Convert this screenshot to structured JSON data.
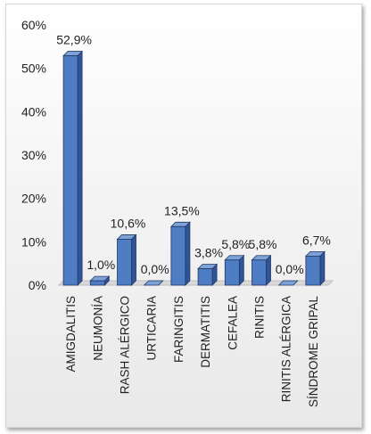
{
  "chart_data": {
    "type": "bar",
    "style": "3d-column",
    "title": "",
    "xlabel": "",
    "ylabel": "",
    "categories": [
      "AMIGDALITIS",
      "NEUMONÍA",
      "RASH ALÉRGICO",
      "URTICARIA",
      "FARINGITIS",
      "DERMATITIS",
      "CEFALEA",
      "RINITIS",
      "RINITIS ALÉRGICA",
      "SÍNDROME GRIPAL"
    ],
    "values": [
      52.9,
      1.0,
      10.6,
      0.0,
      13.5,
      3.8,
      5.8,
      5.8,
      0.0,
      6.7
    ],
    "data_labels": [
      "52,9%",
      "1,0%",
      "10,6%",
      "0,0%",
      "13,5%",
      "3,8%",
      "5,8%",
      "5,8%",
      "0,0%",
      "6,7%"
    ],
    "ylim": [
      0,
      60
    ],
    "yticks": [
      0,
      10,
      20,
      30,
      40,
      50,
      60
    ],
    "ytick_labels": [
      "0%",
      "10%",
      "20%",
      "30%",
      "40%",
      "50%",
      "60%"
    ],
    "grid": false,
    "legend": "none",
    "colors": {
      "bar_front": "#4f7dc4",
      "bar_top": "#7ea2d8",
      "bar_side": "#2f5597",
      "outline": "#203864"
    }
  }
}
